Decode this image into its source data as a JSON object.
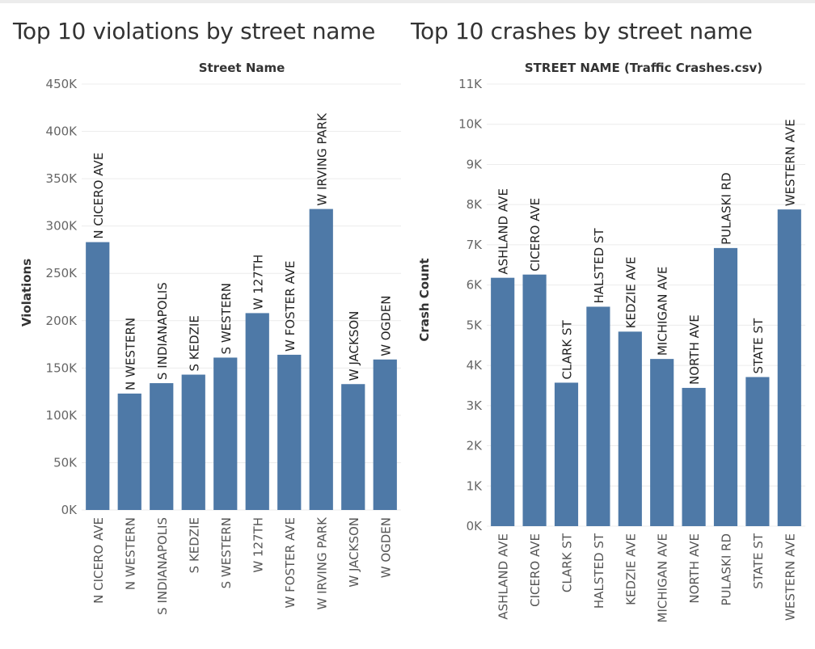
{
  "chart_data": [
    {
      "type": "bar",
      "title": "Top 10 violations by street name",
      "header": "Street Name",
      "xlabel": "",
      "ylabel": "Violations",
      "ylim": [
        0,
        450000
      ],
      "yticks": [
        0,
        50000,
        100000,
        150000,
        200000,
        250000,
        300000,
        350000,
        400000,
        450000
      ],
      "ytick_labels": [
        "0K",
        "50K",
        "100K",
        "150K",
        "200K",
        "250K",
        "300K",
        "350K",
        "400K",
        "450K"
      ],
      "grid": true,
      "color": "#4e79a7",
      "categories": [
        "N CICERO AVE",
        "N WESTERN",
        "S INDIANAPOLIS",
        "S KEDZIE",
        "S WESTERN",
        "W 127TH",
        "W FOSTER AVE",
        "W IRVING PARK",
        "W JACKSON",
        "W OGDEN"
      ],
      "values": [
        283000,
        123000,
        134000,
        143000,
        161000,
        208000,
        164000,
        318000,
        133000,
        159000
      ]
    },
    {
      "type": "bar",
      "title": "Top 10 crashes by street name",
      "header": "STREET NAME (Traffic Crashes.csv)",
      "xlabel": "",
      "ylabel": "Crash Count",
      "ylim": [
        0,
        11000
      ],
      "yticks": [
        0,
        1000,
        2000,
        3000,
        4000,
        5000,
        6000,
        7000,
        8000,
        9000,
        10000,
        11000
      ],
      "ytick_labels": [
        "0K",
        "1K",
        "2K",
        "3K",
        "4K",
        "5K",
        "6K",
        "7K",
        "8K",
        "9K",
        "10K",
        "11K"
      ],
      "grid": true,
      "color": "#4e79a7",
      "categories": [
        "ASHLAND AVE",
        "CICERO AVE",
        "CLARK ST",
        "HALSTED ST",
        "KEDZIE AVE",
        "MICHIGAN AVE",
        "NORTH AVE",
        "PULASKI RD",
        "STATE ST",
        "WESTERN AVE"
      ],
      "values": [
        6180,
        6260,
        3570,
        5460,
        4840,
        4160,
        3440,
        6920,
        3710,
        7880
      ]
    }
  ]
}
